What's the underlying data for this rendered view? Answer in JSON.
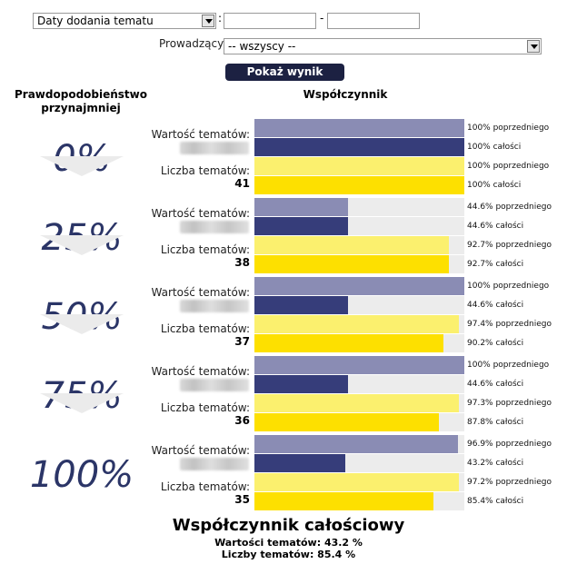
{
  "filters": {
    "date_select": "Daty dodania tematu",
    "colon": ":",
    "dash": "-",
    "date_from": "",
    "date_to": "",
    "leader_label": "Prowadzący:",
    "leader_select": "-- wszyscy --",
    "submit": "Pokaż wynik"
  },
  "headers": {
    "probability": "Prawdopodobieństwo przynajmniej",
    "coefficient": "Współczynnik"
  },
  "row_labels": {
    "value": "Wartość tematów:",
    "count": "Liczba tematów:"
  },
  "colors": {
    "value_prev": "#8a8cb4",
    "value_total": "#363d7a",
    "count_prev": "#fbf06e",
    "count_total": "#fde000",
    "track": "#ececec",
    "percent_text": "#2b3567"
  },
  "groups": [
    {
      "pct": "0%",
      "count": "41",
      "bars": [
        {
          "value": 100,
          "label": "100% poprzedniego"
        },
        {
          "value": 100,
          "label": "100% całości"
        },
        {
          "value": 100,
          "label": "100% poprzedniego"
        },
        {
          "value": 100,
          "label": "100% całości"
        }
      ]
    },
    {
      "pct": "25%",
      "count": "38",
      "bars": [
        {
          "value": 44.6,
          "label": "44.6% poprzedniego"
        },
        {
          "value": 44.6,
          "label": "44.6% całości"
        },
        {
          "value": 92.7,
          "label": "92.7% poprzedniego"
        },
        {
          "value": 92.7,
          "label": "92.7% całości"
        }
      ]
    },
    {
      "pct": "50%",
      "count": "37",
      "bars": [
        {
          "value": 100,
          "label": "100% poprzedniego"
        },
        {
          "value": 44.6,
          "label": "44.6% całości"
        },
        {
          "value": 97.4,
          "label": "97.4% poprzedniego"
        },
        {
          "value": 90.2,
          "label": "90.2% całości"
        }
      ]
    },
    {
      "pct": "75%",
      "count": "36",
      "bars": [
        {
          "value": 100,
          "label": "100% poprzedniego"
        },
        {
          "value": 44.6,
          "label": "44.6% całości"
        },
        {
          "value": 97.3,
          "label": "97.3% poprzedniego"
        },
        {
          "value": 87.8,
          "label": "87.8% całości"
        }
      ]
    },
    {
      "pct": "100%",
      "count": "35",
      "bars": [
        {
          "value": 96.9,
          "label": "96.9% poprzedniego"
        },
        {
          "value": 43.2,
          "label": "43.2% całości"
        },
        {
          "value": 97.2,
          "label": "97.2% poprzedniego"
        },
        {
          "value": 85.4,
          "label": "85.4% całości"
        }
      ]
    }
  ],
  "overall": {
    "title": "Współczynnik całościowy",
    "value_line": "Wartości tematów: 43.2 %",
    "count_line": "Liczby tematów: 85.4 %"
  }
}
